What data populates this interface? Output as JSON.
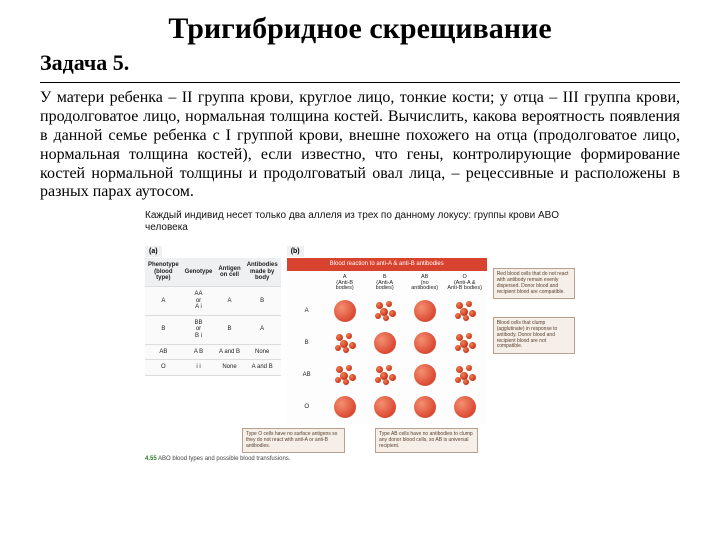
{
  "title": "Тригибридное скрещивание",
  "subtitle": "Задача 5.",
  "body": "У матери ребенка – II группа крови, круглое лицо, тонкие кости; у отца – III  группа крови, продолговатое лицо, нормальная толщина костей. Вычислить, какова вероятность появления в данной семье ребенка с I группой крови, внешне похожего на отца (продолговатое лицо, нормальная толщина костей), если известно, что гены, контролирующие формирование костей нормальной толщины и продолговатый овал лица, – рецессивные и расположены в разных парах аутосом.",
  "figure": {
    "caption_top": "Каждый индивид несет только два аллеля из трех по данному локусу: группы крови ABO человека",
    "panel_a": "(a)",
    "panel_b": "(b)",
    "left_headers": [
      "Phenotype\n(blood type)",
      "Genotype",
      "Antigen\non cell",
      "Antibodies\nmade by\nbody"
    ],
    "left_rows": [
      [
        "A",
        "AA\nor\nA i",
        "A",
        "B"
      ],
      [
        "B",
        "BB\nor\nB i",
        "B",
        "A"
      ],
      [
        "AB",
        "A B",
        "A and B",
        "None"
      ],
      [
        "O",
        "i i",
        "None",
        "A and B"
      ]
    ],
    "right_header": "Blood reaction to anti-A & anti-B antibodies",
    "col_headers": [
      "A\n(Anti-B\nbodies)",
      "B\n(Anti-A\nbodies)",
      "AB\n(no\nantibodies)",
      "O\n(Anti-A &\nAnti-B bodies)"
    ],
    "row_headers": [
      "A",
      "B",
      "AB",
      "O"
    ],
    "cells": [
      [
        "smooth",
        "clump",
        "smooth",
        "clump"
      ],
      [
        "clump",
        "smooth",
        "smooth",
        "clump"
      ],
      [
        "clump",
        "clump",
        "smooth",
        "clump"
      ],
      [
        "smooth",
        "smooth",
        "smooth",
        "smooth"
      ]
    ],
    "colors": {
      "smooth": "#d8432f",
      "clump": "#cf3a1f",
      "header_bg": "#d8432f"
    },
    "side_note_1": "Red blood cells that do not react with antibody remain evenly dispersed. Donor blood and recipient blood are compatible.",
    "side_note_2": "Blood cells that clump (agglutinate) in response to antibody. Donor blood and recipient blood are not compatible.",
    "bottom_note_1": "Type O cells have no surface antigens so they do not react with anti-A or anti-B antibodies.",
    "bottom_note_2": "Type AB cells have no antibodies to clump any donor blood cells, so AB is universal recipient.",
    "credit_num": "4.55",
    "credit_text": "ABO blood types and possible blood transfusions."
  }
}
